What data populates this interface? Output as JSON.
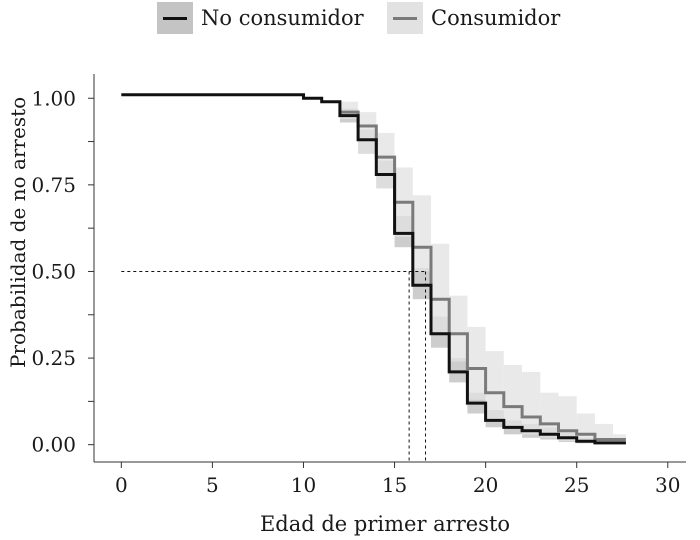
{
  "chart_data": {
    "type": "line",
    "xlabel": "Edad de primer arresto",
    "ylabel": "Probabilidad de no arresto",
    "xlim": [
      -1.5,
      31
    ],
    "ylim": [
      -0.05,
      1.07
    ],
    "xticks": [
      0,
      5,
      10,
      15,
      20,
      25,
      30
    ],
    "xtick_labels": [
      "0",
      "5",
      "10",
      "15",
      "20",
      "25",
      "30"
    ],
    "yticks": [
      0,
      0.25,
      0.5,
      0.75,
      1.0
    ],
    "ytick_labels": [
      "0.00",
      "0.25",
      "0.50",
      "0.75",
      "1.00"
    ],
    "legend_position": "top",
    "grid": false,
    "series": [
      {
        "name": "No consumidor",
        "color": "#111111",
        "band_color": "#c4c4c4",
        "x": [
          0,
          10,
          11,
          12,
          13,
          14,
          15,
          16,
          17,
          18,
          19,
          20,
          21,
          22,
          23,
          24,
          25,
          26,
          27.7
        ],
        "y": [
          1.01,
          1.0,
          0.99,
          0.95,
          0.88,
          0.78,
          0.61,
          0.46,
          0.32,
          0.21,
          0.12,
          0.07,
          0.05,
          0.04,
          0.03,
          0.02,
          0.01,
          0.005,
          0.005
        ],
        "lower": [
          1.01,
          1.0,
          0.99,
          0.93,
          0.84,
          0.74,
          0.57,
          0.42,
          0.28,
          0.18,
          0.09,
          0.05,
          0.03,
          0.02,
          0.015,
          0.008,
          0.004,
          0.002,
          0.002
        ],
        "upper": [
          1.01,
          1.0,
          0.99,
          0.97,
          0.91,
          0.82,
          0.66,
          0.51,
          0.37,
          0.25,
          0.15,
          0.1,
          0.07,
          0.06,
          0.05,
          0.035,
          0.02,
          0.01,
          0.01
        ]
      },
      {
        "name": "Consumidor",
        "color": "#7a7a7a",
        "band_color": "#e2e2e2",
        "x": [
          12,
          13,
          14,
          15,
          16,
          17,
          18,
          19,
          20,
          21,
          22,
          23,
          24,
          25,
          26,
          27,
          27.7
        ],
        "y": [
          0.96,
          0.92,
          0.83,
          0.7,
          0.57,
          0.42,
          0.32,
          0.22,
          0.15,
          0.11,
          0.08,
          0.06,
          0.04,
          0.03,
          0.015,
          0.015,
          0.015
        ],
        "lower": [
          0.94,
          0.84,
          0.74,
          0.6,
          0.5,
          0.32,
          0.24,
          0.13,
          0.07,
          0.05,
          0.03,
          0.02,
          0.01,
          0.005,
          0.0,
          0.0,
          0.0
        ],
        "upper": [
          0.99,
          0.96,
          0.9,
          0.8,
          0.72,
          0.58,
          0.43,
          0.34,
          0.27,
          0.23,
          0.21,
          0.15,
          0.14,
          0.09,
          0.06,
          0.03,
          0.03
        ]
      }
    ],
    "median_reference": {
      "y": 0.5,
      "x_start": 0,
      "x_values": [
        15.8,
        16.7
      ]
    }
  }
}
